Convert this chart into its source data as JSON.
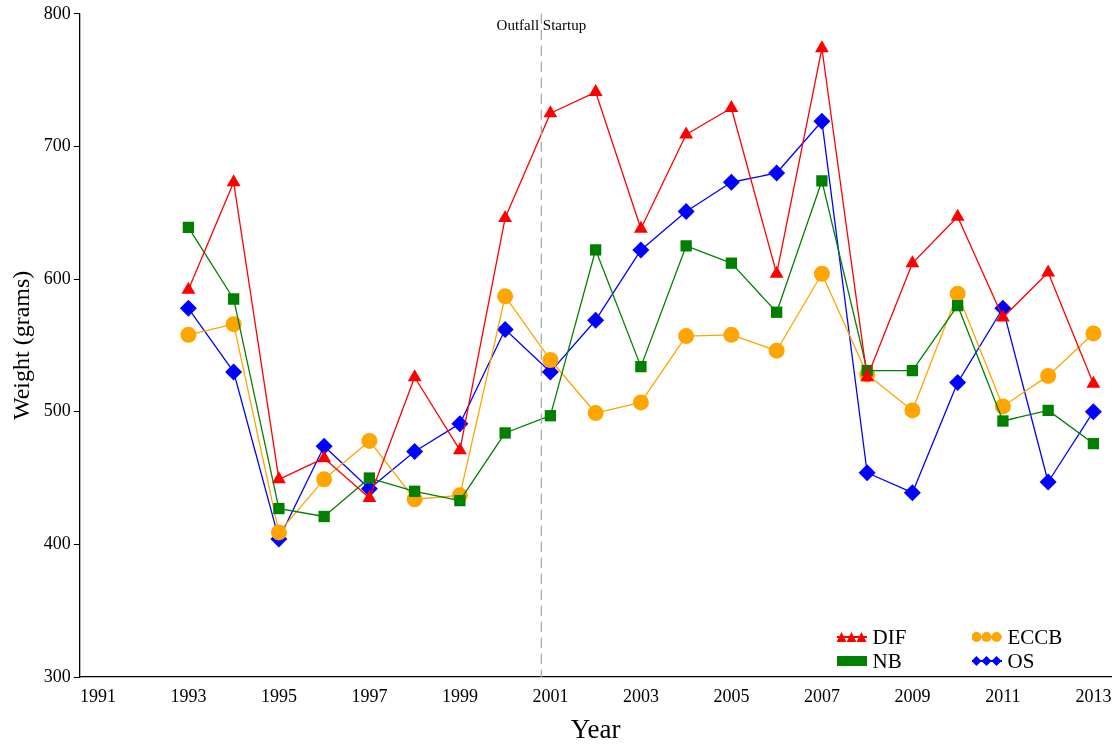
{
  "chart_data": {
    "type": "line",
    "xlabel": "Year",
    "ylabel": "Weight (grams)",
    "x": [
      1993,
      1994,
      1995,
      1996,
      1997,
      1998,
      1999,
      2000,
      2001,
      2002,
      2003,
      2004,
      2005,
      2006,
      2007,
      2008,
      2009,
      2010,
      2011,
      2012,
      2013
    ],
    "xlim": [
      1990.6,
      2013.4
    ],
    "xticks": [
      1991,
      1993,
      1995,
      1997,
      1999,
      2001,
      2003,
      2005,
      2007,
      2009,
      2011,
      2013
    ],
    "ylim": [
      300,
      800
    ],
    "yticks": [
      300,
      400,
      500,
      600,
      700,
      800
    ],
    "grid": false,
    "legend": "bottom right",
    "line_style": "solid",
    "series": [
      {
        "name": "DIF",
        "color": "#ff0000",
        "marker": "triangle",
        "values": [
          592,
          673,
          449,
          465,
          435,
          526,
          471,
          646,
          725,
          741,
          638,
          709,
          729,
          604,
          774,
          526,
          612,
          647,
          571,
          605,
          521
        ]
      },
      {
        "name": "NB",
        "color": "#008000",
        "marker": "square",
        "values": [
          639,
          585,
          427,
          421,
          450,
          440,
          433,
          484,
          497,
          622,
          534,
          625,
          612,
          575,
          674,
          531,
          531,
          580,
          493,
          501,
          476
        ]
      },
      {
        "name": "ECCB",
        "color": "#ffa500",
        "marker": "circle",
        "values": [
          558,
          566,
          409,
          449,
          478,
          434,
          437,
          587,
          539,
          499,
          507,
          557,
          558,
          546,
          604,
          528,
          501,
          589,
          504,
          527,
          559
        ]
      },
      {
        "name": "OS",
        "color": "#0000ff",
        "marker": "diamond",
        "values": [
          578,
          530,
          404,
          474,
          442,
          470,
          491,
          562,
          530,
          569,
          622,
          651,
          673,
          680,
          719,
          454,
          439,
          522,
          578,
          447,
          500
        ]
      }
    ],
    "ref_lines": [
      {
        "axis": "x",
        "value": 2000.8,
        "label": "Outfall Startup",
        "color": "#aaaaaa",
        "line_style": "dashed"
      }
    ]
  }
}
